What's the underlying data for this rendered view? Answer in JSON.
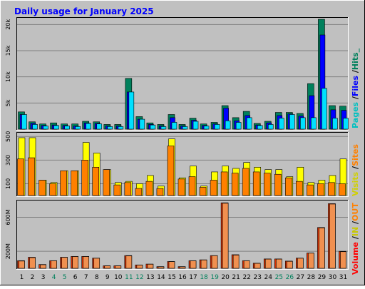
{
  "title": "Daily usage for January 2025",
  "colors": {
    "background": "#C0C0C0",
    "plot_bg": "#C0C0C0",
    "title": "#0000FF",
    "hits": "#00805C",
    "files": "#0000FF",
    "pages": "#00E0FF",
    "visits": "#FFFF00",
    "sites": "#FF8000",
    "volume": "#FF0000",
    "in": "#E0C000",
    "out": "#FF8000",
    "weekend_label": "#00805C",
    "weekday_label": "#000000"
  },
  "legends": {
    "hits_panel": [
      {
        "text": "Pages",
        "color": "#00C0C0"
      },
      {
        "text": " /",
        "color": "#000000"
      },
      {
        "text": "Files",
        "color": "#0000FF"
      },
      {
        "text": " /",
        "color": "#000000"
      },
      {
        "text": "Hits_",
        "color": "#00805C"
      }
    ],
    "visits_panel": [
      {
        "text": "Visits",
        "color": "#D0D000"
      },
      {
        "text": " /",
        "color": "#000000"
      },
      {
        "text": "Sites",
        "color": "#FF8000"
      }
    ],
    "volume_panel": [
      {
        "text": "Volume",
        "color": "#FF0000"
      },
      {
        "text": " /",
        "color": "#000000"
      },
      {
        "text": "IN",
        "color": "#C8C800"
      },
      {
        "text": " /",
        "color": "#000000"
      },
      {
        "text": "OUT",
        "color": "#FF8000"
      }
    ]
  },
  "chart_data": [
    {
      "type": "bar",
      "name_label": "hits",
      "categories": [
        "1",
        "2",
        "3",
        "4",
        "5",
        "6",
        "7",
        "8",
        "9",
        "10",
        "11",
        "12",
        "13",
        "14",
        "15",
        "16",
        "17",
        "18",
        "19",
        "20",
        "21",
        "22",
        "23",
        "24",
        "25",
        "26",
        "27",
        "28",
        "29",
        "30",
        "31"
      ],
      "weekend_days": [
        "4",
        "5",
        "11",
        "12",
        "18",
        "19",
        "25",
        "26"
      ],
      "yticks": [
        "5k",
        "10k",
        "15k",
        "20k"
      ],
      "ylim": [
        0,
        21000
      ],
      "series": [
        {
          "name": "Hits",
          "values": [
            3300,
            1400,
            1000,
            1200,
            1000,
            1000,
            1500,
            1400,
            900,
            900,
            9700,
            2400,
            1200,
            900,
            2800,
            900,
            2100,
            1000,
            1300,
            4500,
            2200,
            3400,
            1100,
            1500,
            3200,
            3200,
            3000,
            8700,
            21000,
            4500,
            4400
          ]
        },
        {
          "name": "Files",
          "values": [
            2800,
            1100,
            700,
            800,
            700,
            600,
            1200,
            1100,
            600,
            600,
            7100,
            1900,
            900,
            600,
            2200,
            600,
            1700,
            700,
            1000,
            4000,
            1600,
            2600,
            800,
            1200,
            2600,
            2900,
            2500,
            6400,
            18000,
            3700,
            3600
          ]
        },
        {
          "name": "Pages",
          "values": [
            2800,
            900,
            600,
            700,
            600,
            500,
            1100,
            1000,
            500,
            500,
            7100,
            1900,
            800,
            500,
            1300,
            500,
            1500,
            600,
            900,
            1600,
            1300,
            2200,
            700,
            900,
            2100,
            2800,
            2200,
            2200,
            7800,
            2100,
            2100
          ]
        }
      ]
    },
    {
      "type": "bar",
      "name_label": "visits",
      "categories": [
        "1",
        "2",
        "3",
        "4",
        "5",
        "6",
        "7",
        "8",
        "9",
        "10",
        "11",
        "12",
        "13",
        "14",
        "15",
        "16",
        "17",
        "18",
        "19",
        "20",
        "21",
        "22",
        "23",
        "24",
        "25",
        "26",
        "27",
        "28",
        "29",
        "30",
        "31"
      ],
      "yticks": [
        "100",
        "300",
        "500"
      ],
      "ylim": [
        0,
        520
      ],
      "series": [
        {
          "name": "Visits",
          "values": [
            490,
            490,
            130,
            110,
            210,
            210,
            450,
            360,
            220,
            110,
            120,
            100,
            170,
            80,
            480,
            150,
            250,
            80,
            200,
            250,
            230,
            280,
            240,
            220,
            220,
            160,
            240,
            110,
            130,
            170,
            310
          ]
        },
        {
          "name": "Sites",
          "values": [
            310,
            320,
            130,
            100,
            210,
            210,
            300,
            240,
            220,
            90,
            110,
            60,
            120,
            60,
            420,
            140,
            160,
            70,
            130,
            200,
            190,
            230,
            200,
            190,
            180,
            150,
            120,
            90,
            100,
            110,
            100
          ]
        }
      ]
    },
    {
      "type": "bar",
      "name_label": "volume",
      "categories": [
        "1",
        "2",
        "3",
        "4",
        "5",
        "6",
        "7",
        "8",
        "9",
        "10",
        "11",
        "12",
        "13",
        "14",
        "15",
        "16",
        "17",
        "18",
        "19",
        "20",
        "21",
        "22",
        "23",
        "24",
        "25",
        "26",
        "27",
        "28",
        "29",
        "30",
        "31"
      ],
      "yticks": [
        "200M",
        "600M"
      ],
      "ylim": [
        0,
        780
      ],
      "series": [
        {
          "name": "Volume",
          "values": [
            90,
            130,
            45,
            90,
            130,
            140,
            140,
            120,
            30,
            30,
            150,
            40,
            50,
            20,
            80,
            20,
            90,
            100,
            150,
            770,
            160,
            90,
            60,
            110,
            110,
            85,
            120,
            180,
            480,
            760,
            200
          ]
        },
        {
          "name": "Out",
          "values": [
            85,
            125,
            42,
            88,
            128,
            138,
            138,
            118,
            28,
            28,
            145,
            38,
            48,
            18,
            78,
            18,
            88,
            98,
            148,
            765,
            155,
            88,
            58,
            108,
            108,
            82,
            118,
            178,
            475,
            755,
            195
          ]
        }
      ]
    }
  ]
}
